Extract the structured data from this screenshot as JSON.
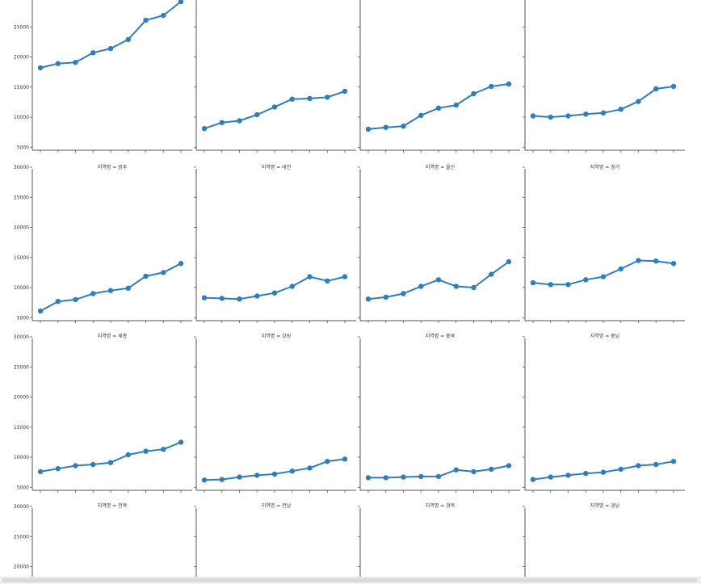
{
  "chart_data": {
    "type": "line",
    "layout": "facet-grid-4-columns",
    "yticks": [
      5000,
      10000,
      15000,
      20000,
      25000,
      30000
    ],
    "ytick_labels": [
      "5000",
      "10000",
      "15000",
      "20000",
      "25000",
      "30000"
    ],
    "ylim": [
      4500,
      30000
    ],
    "x": [
      0,
      1,
      2,
      3,
      4,
      5,
      6,
      7,
      8
    ],
    "facets": [
      {
        "title": "",
        "values": [
          18200,
          18900,
          19100,
          20700,
          21400,
          22900,
          26100,
          26900,
          29200
        ]
      },
      {
        "title": "",
        "values": [
          8100,
          9100,
          9400,
          10400,
          11700,
          13000,
          13100,
          13300,
          14300
        ]
      },
      {
        "title": "",
        "values": [
          8000,
          8300,
          8500,
          10300,
          11500,
          12000,
          13900,
          15100,
          15500
        ]
      },
      {
        "title": "",
        "values": [
          10200,
          10000,
          10200,
          10500,
          10700,
          11300,
          12600,
          14700,
          15100
        ]
      },
      {
        "title": "지역명 = 광주",
        "values": [
          6100,
          7700,
          8000,
          9000,
          9500,
          9900,
          11900,
          12500,
          14000
        ]
      },
      {
        "title": "지역명 = 대전",
        "values": [
          8300,
          8200,
          8100,
          8600,
          9100,
          10200,
          11800,
          11100,
          11800
        ]
      },
      {
        "title": "지역명 = 울산",
        "values": [
          8100,
          8400,
          9000,
          10200,
          11300,
          10200,
          10000,
          12200,
          14300
        ]
      },
      {
        "title": "지역명 = 경기",
        "values": [
          10800,
          10500,
          10500,
          11300,
          11800,
          13100,
          14500,
          14400,
          14000
        ]
      },
      {
        "title": "지역명 = 세종",
        "values": [
          7600,
          8100,
          8600,
          8800,
          9100,
          10400,
          11000,
          11300,
          12500
        ]
      },
      {
        "title": "지역명 = 강원",
        "values": [
          6200,
          6300,
          6700,
          7000,
          7200,
          7700,
          8200,
          9300,
          9700
        ]
      },
      {
        "title": "지역명 = 충북",
        "values": [
          6600,
          6600,
          6700,
          6800,
          6800,
          7900,
          7600,
          8000,
          8600
        ]
      },
      {
        "title": "지역명 = 충남",
        "values": [
          6300,
          6700,
          7000,
          7300,
          7500,
          8000,
          8600,
          8800,
          9300
        ]
      },
      {
        "title": "지역명 = 전북",
        "values": []
      },
      {
        "title": "지역명 = 전남",
        "values": []
      },
      {
        "title": "지역명 = 경북",
        "values": []
      },
      {
        "title": "지역명 = 경남",
        "values": []
      }
    ],
    "colors": {
      "series": "#2f7ebc"
    },
    "grid": false,
    "legend": "none"
  }
}
